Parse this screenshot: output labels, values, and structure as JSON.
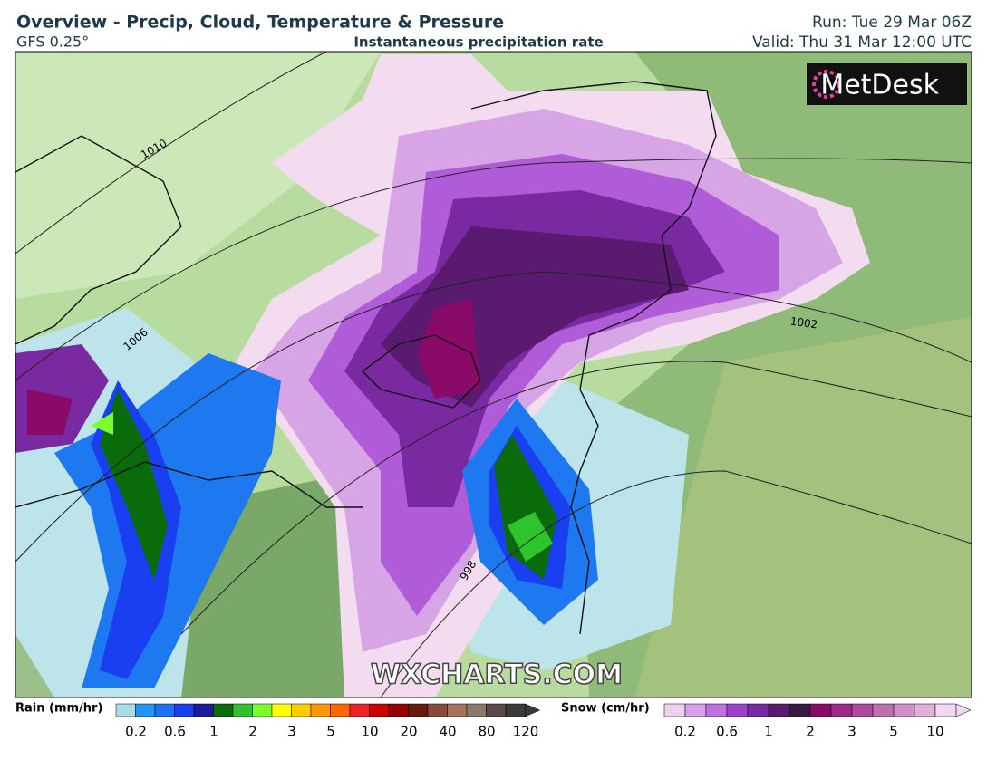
{
  "header": {
    "title": "Overview - Precip, Cloud, Temperature & Pressure",
    "model": "GFS 0.25°",
    "field": "Instantaneous precipitation rate",
    "run": "Run: Tue 29 Mar 06Z",
    "valid": "Valid: Thu 31 Mar 12:00 UTC"
  },
  "map": {
    "logo": "MetDesk",
    "watermark": "WXCHARTS.COM",
    "isobars": [
      "1010",
      "1006",
      "1002",
      "998"
    ]
  },
  "legend": {
    "rain": {
      "title": "Rain (mm/hr)",
      "ticks": [
        0.2,
        0.6,
        1,
        2,
        3,
        5,
        10,
        20,
        40,
        80,
        120
      ]
    },
    "snow": {
      "title": "Snow (cm/hr)",
      "ticks": [
        0.2,
        0.6,
        1,
        2,
        3,
        5,
        10
      ]
    }
  }
}
